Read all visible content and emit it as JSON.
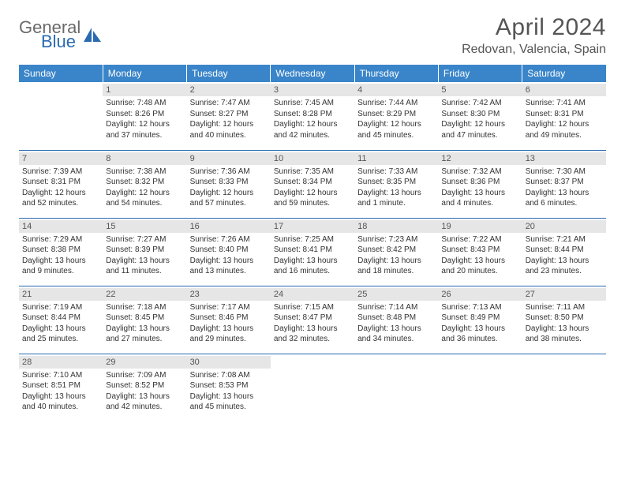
{
  "brand": {
    "part1": "General",
    "part2": "Blue"
  },
  "title": "April 2024",
  "subtitle": "Redovan, Valencia, Spain",
  "colors": {
    "header_bg": "#3a85c9",
    "rule": "#2a6ab0",
    "daynum_bg": "#e6e6e6",
    "text": "#333333",
    "title_text": "#555555"
  },
  "weekdays": [
    "Sunday",
    "Monday",
    "Tuesday",
    "Wednesday",
    "Thursday",
    "Friday",
    "Saturday"
  ],
  "weeks": [
    [
      {
        "empty": true
      },
      {
        "num": "1",
        "sunrise": "Sunrise: 7:48 AM",
        "sunset": "Sunset: 8:26 PM",
        "day1": "Daylight: 12 hours",
        "day2": "and 37 minutes."
      },
      {
        "num": "2",
        "sunrise": "Sunrise: 7:47 AM",
        "sunset": "Sunset: 8:27 PM",
        "day1": "Daylight: 12 hours",
        "day2": "and 40 minutes."
      },
      {
        "num": "3",
        "sunrise": "Sunrise: 7:45 AM",
        "sunset": "Sunset: 8:28 PM",
        "day1": "Daylight: 12 hours",
        "day2": "and 42 minutes."
      },
      {
        "num": "4",
        "sunrise": "Sunrise: 7:44 AM",
        "sunset": "Sunset: 8:29 PM",
        "day1": "Daylight: 12 hours",
        "day2": "and 45 minutes."
      },
      {
        "num": "5",
        "sunrise": "Sunrise: 7:42 AM",
        "sunset": "Sunset: 8:30 PM",
        "day1": "Daylight: 12 hours",
        "day2": "and 47 minutes."
      },
      {
        "num": "6",
        "sunrise": "Sunrise: 7:41 AM",
        "sunset": "Sunset: 8:31 PM",
        "day1": "Daylight: 12 hours",
        "day2": "and 49 minutes."
      }
    ],
    [
      {
        "num": "7",
        "sunrise": "Sunrise: 7:39 AM",
        "sunset": "Sunset: 8:31 PM",
        "day1": "Daylight: 12 hours",
        "day2": "and 52 minutes."
      },
      {
        "num": "8",
        "sunrise": "Sunrise: 7:38 AM",
        "sunset": "Sunset: 8:32 PM",
        "day1": "Daylight: 12 hours",
        "day2": "and 54 minutes."
      },
      {
        "num": "9",
        "sunrise": "Sunrise: 7:36 AM",
        "sunset": "Sunset: 8:33 PM",
        "day1": "Daylight: 12 hours",
        "day2": "and 57 minutes."
      },
      {
        "num": "10",
        "sunrise": "Sunrise: 7:35 AM",
        "sunset": "Sunset: 8:34 PM",
        "day1": "Daylight: 12 hours",
        "day2": "and 59 minutes."
      },
      {
        "num": "11",
        "sunrise": "Sunrise: 7:33 AM",
        "sunset": "Sunset: 8:35 PM",
        "day1": "Daylight: 13 hours",
        "day2": "and 1 minute."
      },
      {
        "num": "12",
        "sunrise": "Sunrise: 7:32 AM",
        "sunset": "Sunset: 8:36 PM",
        "day1": "Daylight: 13 hours",
        "day2": "and 4 minutes."
      },
      {
        "num": "13",
        "sunrise": "Sunrise: 7:30 AM",
        "sunset": "Sunset: 8:37 PM",
        "day1": "Daylight: 13 hours",
        "day2": "and 6 minutes."
      }
    ],
    [
      {
        "num": "14",
        "sunrise": "Sunrise: 7:29 AM",
        "sunset": "Sunset: 8:38 PM",
        "day1": "Daylight: 13 hours",
        "day2": "and 9 minutes."
      },
      {
        "num": "15",
        "sunrise": "Sunrise: 7:27 AM",
        "sunset": "Sunset: 8:39 PM",
        "day1": "Daylight: 13 hours",
        "day2": "and 11 minutes."
      },
      {
        "num": "16",
        "sunrise": "Sunrise: 7:26 AM",
        "sunset": "Sunset: 8:40 PM",
        "day1": "Daylight: 13 hours",
        "day2": "and 13 minutes."
      },
      {
        "num": "17",
        "sunrise": "Sunrise: 7:25 AM",
        "sunset": "Sunset: 8:41 PM",
        "day1": "Daylight: 13 hours",
        "day2": "and 16 minutes."
      },
      {
        "num": "18",
        "sunrise": "Sunrise: 7:23 AM",
        "sunset": "Sunset: 8:42 PM",
        "day1": "Daylight: 13 hours",
        "day2": "and 18 minutes."
      },
      {
        "num": "19",
        "sunrise": "Sunrise: 7:22 AM",
        "sunset": "Sunset: 8:43 PM",
        "day1": "Daylight: 13 hours",
        "day2": "and 20 minutes."
      },
      {
        "num": "20",
        "sunrise": "Sunrise: 7:21 AM",
        "sunset": "Sunset: 8:44 PM",
        "day1": "Daylight: 13 hours",
        "day2": "and 23 minutes."
      }
    ],
    [
      {
        "num": "21",
        "sunrise": "Sunrise: 7:19 AM",
        "sunset": "Sunset: 8:44 PM",
        "day1": "Daylight: 13 hours",
        "day2": "and 25 minutes."
      },
      {
        "num": "22",
        "sunrise": "Sunrise: 7:18 AM",
        "sunset": "Sunset: 8:45 PM",
        "day1": "Daylight: 13 hours",
        "day2": "and 27 minutes."
      },
      {
        "num": "23",
        "sunrise": "Sunrise: 7:17 AM",
        "sunset": "Sunset: 8:46 PM",
        "day1": "Daylight: 13 hours",
        "day2": "and 29 minutes."
      },
      {
        "num": "24",
        "sunrise": "Sunrise: 7:15 AM",
        "sunset": "Sunset: 8:47 PM",
        "day1": "Daylight: 13 hours",
        "day2": "and 32 minutes."
      },
      {
        "num": "25",
        "sunrise": "Sunrise: 7:14 AM",
        "sunset": "Sunset: 8:48 PM",
        "day1": "Daylight: 13 hours",
        "day2": "and 34 minutes."
      },
      {
        "num": "26",
        "sunrise": "Sunrise: 7:13 AM",
        "sunset": "Sunset: 8:49 PM",
        "day1": "Daylight: 13 hours",
        "day2": "and 36 minutes."
      },
      {
        "num": "27",
        "sunrise": "Sunrise: 7:11 AM",
        "sunset": "Sunset: 8:50 PM",
        "day1": "Daylight: 13 hours",
        "day2": "and 38 minutes."
      }
    ],
    [
      {
        "num": "28",
        "sunrise": "Sunrise: 7:10 AM",
        "sunset": "Sunset: 8:51 PM",
        "day1": "Daylight: 13 hours",
        "day2": "and 40 minutes."
      },
      {
        "num": "29",
        "sunrise": "Sunrise: 7:09 AM",
        "sunset": "Sunset: 8:52 PM",
        "day1": "Daylight: 13 hours",
        "day2": "and 42 minutes."
      },
      {
        "num": "30",
        "sunrise": "Sunrise: 7:08 AM",
        "sunset": "Sunset: 8:53 PM",
        "day1": "Daylight: 13 hours",
        "day2": "and 45 minutes."
      },
      {
        "empty": true
      },
      {
        "empty": true
      },
      {
        "empty": true
      },
      {
        "empty": true
      }
    ]
  ]
}
